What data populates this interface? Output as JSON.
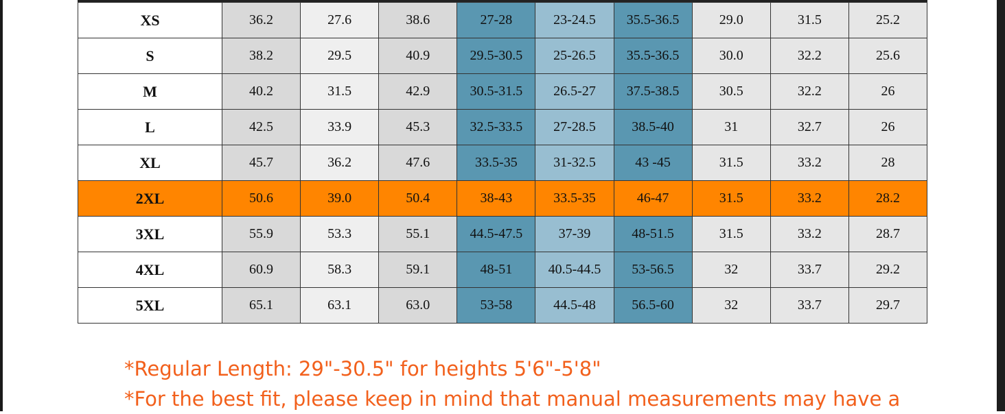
{
  "table": {
    "rows": [
      [
        "XS",
        "36.2",
        "27.6",
        "38.6",
        "27-28",
        "23-24.5",
        "35.5-36.5",
        "29.0",
        "31.5",
        "25.2"
      ],
      [
        "S",
        "38.2",
        "29.5",
        "40.9",
        "29.5-30.5",
        "25-26.5",
        "35.5-36.5",
        "30.0",
        "32.2",
        "25.6"
      ],
      [
        "M",
        "40.2",
        "31.5",
        "42.9",
        "30.5-31.5",
        "26.5-27",
        "37.5-38.5",
        "30.5",
        "32.2",
        "26"
      ],
      [
        "L",
        "42.5",
        "33.9",
        "45.3",
        "32.5-33.5",
        "27-28.5",
        "38.5-40",
        "31",
        "32.7",
        "26"
      ],
      [
        "XL",
        "45.7",
        "36.2",
        "47.6",
        "33.5-35",
        "31-32.5",
        "43 -45",
        "31.5",
        "33.2",
        "28"
      ],
      [
        "2XL",
        "50.6",
        "39.0",
        "50.4",
        "38-43",
        "33.5-35",
        "46-47",
        "31.5",
        "33.2",
        "28.2"
      ],
      [
        "3XL",
        "55.9",
        "53.3",
        "55.1",
        "44.5-47.5",
        "37-39",
        "48-51.5",
        "31.5",
        "33.2",
        "28.7"
      ],
      [
        "4XL",
        "60.9",
        "58.3",
        "59.1",
        "48-51",
        "40.5-44.5",
        "53-56.5",
        "32",
        "33.7",
        "29.2"
      ],
      [
        "5XL",
        "65.1",
        "63.1",
        "63.0",
        "53-58",
        "44.5-48",
        "56.5-60",
        "32",
        "33.7",
        "29.7"
      ]
    ],
    "highlight_row": 5
  },
  "notes": [
    "*Regular Length: 29\"-30.5\" for heights 5'6\"-5'8\"",
    "*For the best fit, please keep in mind that manual measurements may have a"
  ]
}
